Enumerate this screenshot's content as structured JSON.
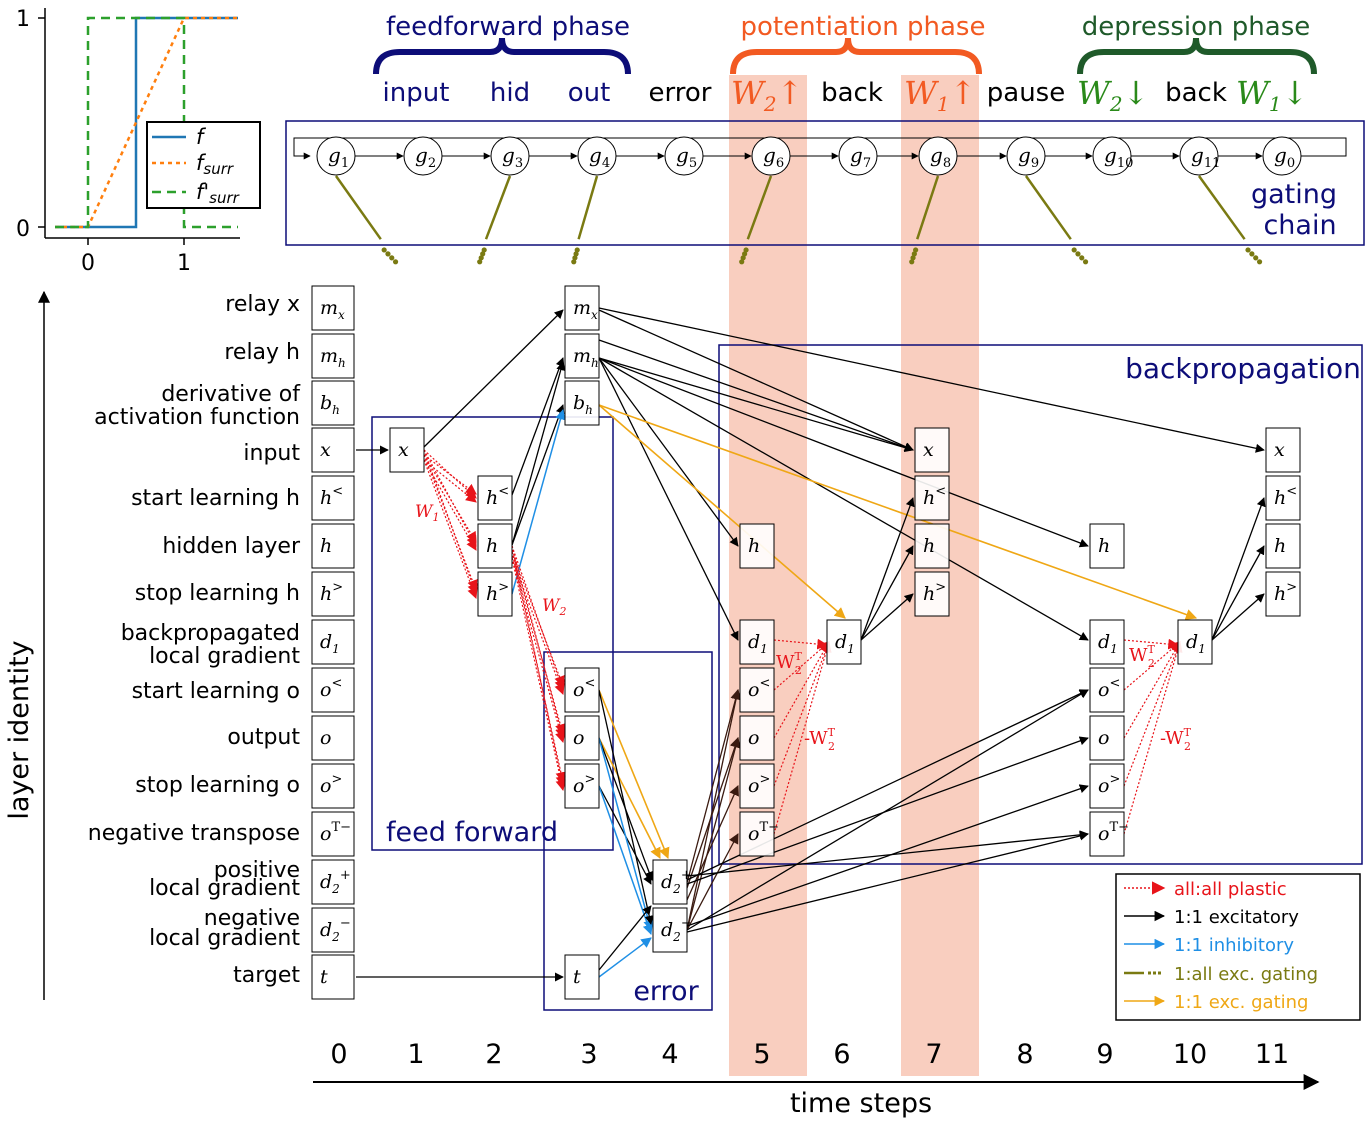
{
  "inset_plot": {
    "yticks": [
      "1",
      "0"
    ],
    "xticks": [
      "0",
      "1"
    ],
    "legend": [
      "f",
      "f",
      "surr",
      "f'",
      "surr"
    ]
  },
  "phases": {
    "feedforward": "feedforward phase",
    "potentiation": "potentiation phase",
    "depression": "depression phase",
    "steps": [
      "input",
      "hid",
      "out",
      "error",
      "back",
      "pause",
      "back"
    ],
    "weights": {
      "w": "W",
      "two": "2",
      "one": "1",
      "up": "↑",
      "down": "↓"
    }
  },
  "gating": {
    "label_line1": "gating",
    "label_line2": "chain",
    "g": "g",
    "nodes": [
      "1",
      "2",
      "3",
      "4",
      "5",
      "6",
      "7",
      "8",
      "9",
      "10",
      "11",
      "0"
    ]
  },
  "layers": [
    "relay x",
    "relay h",
    "derivative of",
    "activation function",
    "input",
    "start learning h",
    "hidden layer",
    "stop learning h",
    "backpropagated",
    "local gradient",
    "start learning o",
    "output",
    "stop learning o",
    "negative transpose",
    "positive",
    "local gradient",
    "negative",
    "local gradient",
    "target"
  ],
  "neurons": {
    "m": "m",
    "b": "b",
    "x": "x",
    "h": "h",
    "d": "d",
    "o": "o",
    "t": "t",
    "sub_x": "x",
    "sub_h": "h",
    "sub_1": "1",
    "sub_2": "2",
    "lt": "<",
    "gt": ">",
    "T_minus": "T−",
    "plus": "+",
    "minus": "−"
  },
  "boxes": {
    "feed_forward": "feed forward",
    "error": "error",
    "backprop": "backpropagation"
  },
  "weight_labels": {
    "W": "W",
    "one": "1",
    "two": "2",
    "T": "T",
    "neg": "-"
  },
  "legend": [
    {
      "label": "all:all plastic",
      "color": "#e8141a"
    },
    {
      "label": "1:1 excitatory",
      "color": "#000000"
    },
    {
      "label": "1:1 inhibitory",
      "color": "#1f8fe5"
    },
    {
      "label": "1:all exc. gating",
      "color": "#7a7a12"
    },
    {
      "label": "1:1 exc. gating",
      "color": "#efa715"
    }
  ],
  "axes": {
    "ylabel": "layer identity",
    "xlabel": "time steps",
    "xticks": [
      "0",
      "1",
      "2",
      "3",
      "4",
      "5",
      "6",
      "7",
      "8",
      "9",
      "10",
      "11"
    ]
  },
  "colors": {
    "navy": "#0d0d78",
    "orange": "#f25a22",
    "green": "#1f5a2a",
    "salmon": "#f4a58a",
    "red": "#e8141a",
    "blue": "#1f8fe5",
    "olive": "#7a7a12",
    "gold": "#efa715",
    "brown": "#3a1a10"
  }
}
